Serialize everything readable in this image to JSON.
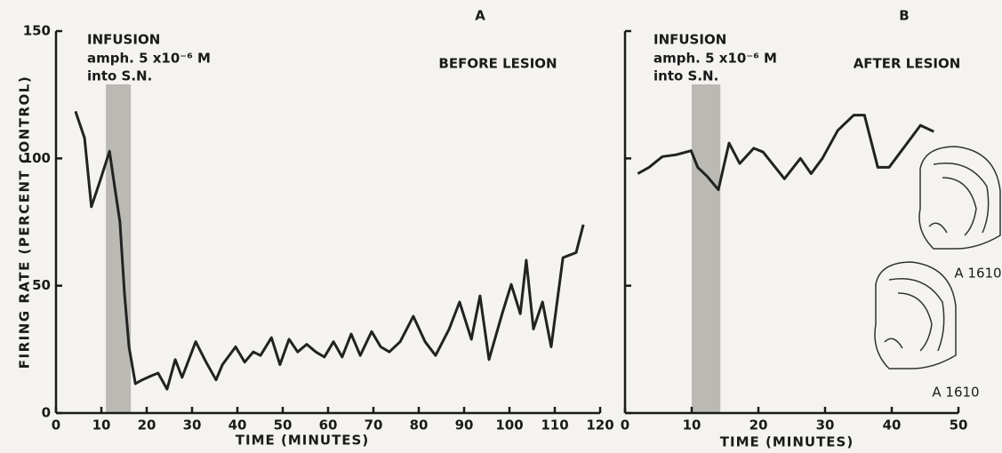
{
  "chart_data": [
    {
      "type": "line",
      "panel": "A",
      "title": "BEFORE LESION",
      "infusion_label": "INFUSION",
      "infusion_dose": "amph. 5 x10⁻⁶ M",
      "infusion_site": "into S.N.",
      "x_label": "TIME (MINUTES)",
      "y_label": "FIRING RATE (PERCENT CONTROL)",
      "xlim": [
        0,
        120
      ],
      "xticks": [
        0,
        10,
        20,
        30,
        40,
        50,
        60,
        70,
        80,
        90,
        100,
        110,
        120
      ],
      "ylim": [
        0,
        150
      ],
      "yticks": [
        0,
        50,
        100,
        150
      ],
      "infusion_band": [
        11,
        16.5
      ],
      "color": "#222222",
      "x": [
        4.3,
        6.3,
        7.8,
        9.6,
        11.8,
        12.5,
        14.1,
        15.1,
        16.1,
        17.5,
        19,
        21,
        22.5,
        24.5,
        26.3,
        27.8,
        30.8,
        33.1,
        35.3,
        36.7,
        39.6,
        41.6,
        43.5,
        45.1,
        47.5,
        49.4,
        51.4,
        53.3,
        55.3,
        57.3,
        59.2,
        61.2,
        63.1,
        65.1,
        67.1,
        69.6,
        71.6,
        73.5,
        75.9,
        78.8,
        81.4,
        83.7,
        86.7,
        89,
        91.6,
        93.5,
        95.5,
        98.4,
        100.4,
        102.4,
        103.7,
        105.3,
        107.3,
        109.2,
        111.8,
        114.7,
        116.3
      ],
      "values": [
        118.5,
        108,
        81,
        90.6,
        102.8,
        94,
        75,
        47,
        26,
        11.5,
        13,
        14.6,
        15.7,
        9.4,
        21,
        14,
        28,
        20,
        13,
        19,
        26,
        20,
        24,
        22.6,
        29.6,
        19,
        29,
        24,
        27,
        24,
        22,
        28,
        22,
        31,
        22.6,
        32,
        26,
        24,
        28,
        38,
        28,
        22.6,
        33,
        43.6,
        29,
        46,
        21,
        39,
        50.5,
        39,
        60,
        33,
        43.6,
        26,
        61,
        63,
        74
      ]
    },
    {
      "type": "line",
      "panel": "B",
      "title": "AFTER LESION",
      "infusion_label": "INFUSION",
      "infusion_dose": "amph. 5 x10⁻⁶ M",
      "infusion_site": "into S.N.",
      "x_label": "TIME (MINUTES)",
      "xlim": [
        0,
        50
      ],
      "xticks": [
        0,
        10,
        20,
        30,
        40,
        50
      ],
      "ylim": [
        0,
        150
      ],
      "yticks": [
        0,
        50,
        100,
        150
      ],
      "infusion_band": [
        10,
        14.3
      ],
      "color": "#222222",
      "annotations": [
        "A 1610",
        "A 1610"
      ],
      "x": [
        1.9,
        3.6,
        5.6,
        7.6,
        9.9,
        10.9,
        12.3,
        14,
        15.6,
        17.2,
        19.3,
        20.7,
        23.9,
        26.3,
        27.9,
        29.6,
        31.9,
        34.3,
        35.9,
        37.9,
        39.6,
        41.6,
        44.3,
        46.3
      ],
      "values": [
        94,
        96.5,
        100.7,
        101.4,
        103,
        96.5,
        93,
        87.7,
        106,
        98,
        104,
        102.5,
        92,
        100,
        94,
        100,
        111,
        117,
        117,
        96.5,
        96.5,
        103.5,
        113,
        110.5
      ]
    }
  ]
}
